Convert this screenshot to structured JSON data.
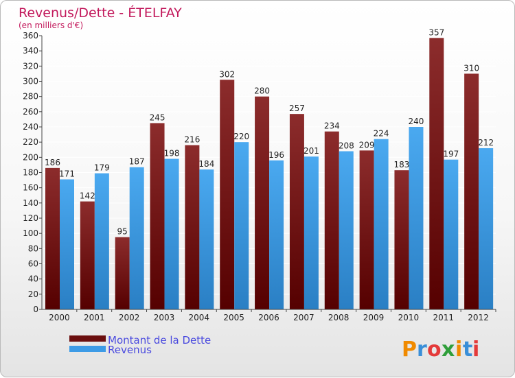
{
  "chart_data": {
    "type": "bar",
    "title": "Revenus/Dette - ÉTELFAY",
    "subtitle": "(en milliers d'€)",
    "categories": [
      "2000",
      "2001",
      "2002",
      "2003",
      "2004",
      "2005",
      "2006",
      "2007",
      "2008",
      "2009",
      "2010",
      "2011",
      "2012"
    ],
    "series": [
      {
        "name": "Montant de la Dette",
        "color": "#7a1414",
        "values": [
          186,
          142,
          95,
          245,
          216,
          302,
          280,
          257,
          234,
          209,
          183,
          357,
          310
        ]
      },
      {
        "name": "Revenus",
        "color": "#3d9be6",
        "values": [
          171,
          179,
          187,
          198,
          184,
          220,
          196,
          201,
          208,
          224,
          240,
          197,
          212
        ]
      }
    ],
    "ylim": [
      0,
      360
    ],
    "yticks": [
      0,
      20,
      40,
      60,
      80,
      100,
      120,
      140,
      160,
      180,
      200,
      220,
      240,
      260,
      280,
      300,
      320,
      340,
      360
    ],
    "grid": true,
    "legend_position": "bottom-left"
  },
  "logo": {
    "letters": [
      {
        "ch": "P",
        "color": "#f08a00"
      },
      {
        "ch": "r",
        "color": "#3a8fd8"
      },
      {
        "ch": "o",
        "color": "#e43a3a"
      },
      {
        "ch": "x",
        "color": "#2f9e3a"
      },
      {
        "ch": "i",
        "color": "#f08a00"
      },
      {
        "ch": "t",
        "color": "#3a8fd8"
      },
      {
        "ch": "i",
        "color": "#e43a3a"
      }
    ]
  }
}
